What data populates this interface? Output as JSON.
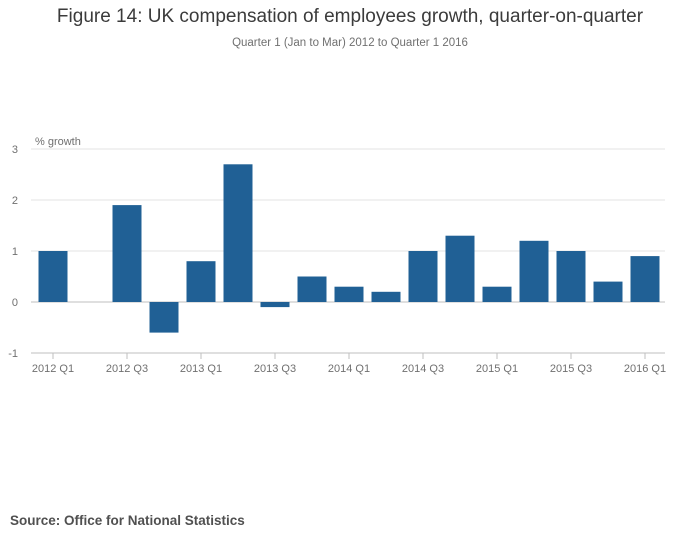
{
  "chart_data": {
    "type": "bar",
    "title": "Figure 14: UK compensation of employees growth, quarter-on-quarter",
    "subtitle": "Quarter 1 (Jan to Mar) 2012 to Quarter 1 2016",
    "ylabel": "% growth",
    "xlabel": "",
    "ylim": [
      -1,
      3
    ],
    "yticks": [
      "3",
      "2",
      "1",
      "0",
      "-1"
    ],
    "grid": true,
    "categories": [
      "2012 Q1",
      "2012 Q2",
      "2012 Q3",
      "2012 Q4",
      "2013 Q1",
      "2013 Q2",
      "2013 Q3",
      "2013 Q4",
      "2014 Q1",
      "2014 Q2",
      "2014 Q3",
      "2014 Q4",
      "2015 Q1",
      "2015 Q2",
      "2015 Q3",
      "2015 Q4",
      "2016 Q1"
    ],
    "xtick_labels": [
      "2012 Q1",
      "2012 Q3",
      "2013 Q1",
      "2013 Q3",
      "2014 Q1",
      "2014 Q3",
      "2015 Q1",
      "2015 Q3",
      "2016 Q1"
    ],
    "values": [
      1.0,
      0.0,
      1.9,
      -0.6,
      0.8,
      2.7,
      -0.1,
      0.5,
      0.3,
      0.2,
      1.0,
      1.3,
      0.3,
      1.2,
      1.0,
      0.4,
      0.9
    ],
    "bar_color": "#206095"
  },
  "source": "Source: Office for National Statistics"
}
